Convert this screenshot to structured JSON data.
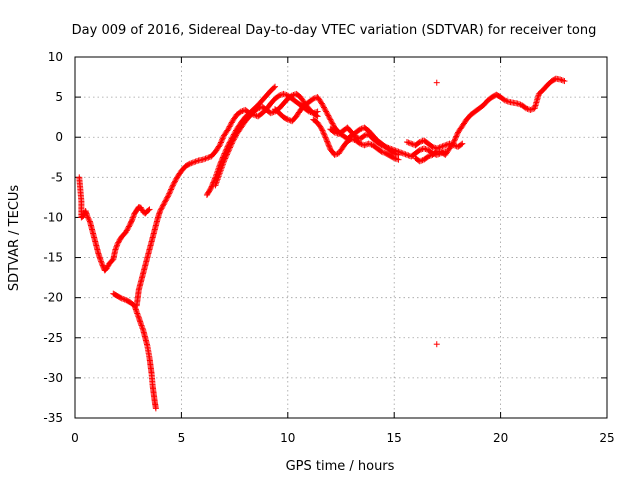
{
  "chart_data": {
    "type": "scatter",
    "title": "Day 009 of 2016, Sidereal Day-to-day VTEC variation (SDTVAR) for receiver tong",
    "xlabel": "GPS time / hours",
    "ylabel": "SDTVAR / TECUs",
    "xlim": [
      0,
      25
    ],
    "ylim": [
      -35,
      10
    ],
    "xticks": [
      0,
      5,
      10,
      15,
      20,
      25
    ],
    "yticks": [
      -35,
      -30,
      -25,
      -20,
      -15,
      -10,
      -5,
      0,
      5,
      10
    ],
    "grid": true,
    "marker": "plus",
    "colors": {
      "points": "#ff0000",
      "grid": "#a0a0a0",
      "frame": "#000000"
    },
    "series": [
      {
        "name": "",
        "segments": [
          [
            [
              0.2,
              -5
            ],
            [
              0.25,
              -6.5
            ],
            [
              0.3,
              -8
            ],
            [
              0.3,
              -10
            ],
            [
              0.4,
              -9.8
            ],
            [
              0.5,
              -9.2
            ],
            [
              0.6,
              -10
            ],
            [
              0.7,
              -10.5
            ],
            [
              0.8,
              -11.5
            ],
            [
              0.9,
              -12.5
            ],
            [
              1.0,
              -13.5
            ],
            [
              1.1,
              -14.5
            ],
            [
              1.2,
              -15.3
            ],
            [
              1.3,
              -16
            ],
            [
              1.4,
              -16.6
            ],
            [
              1.5,
              -16.3
            ],
            [
              1.6,
              -15.8
            ],
            [
              1.8,
              -15.2
            ],
            [
              1.9,
              -14
            ],
            [
              2.0,
              -13.3
            ],
            [
              2.1,
              -12.8
            ],
            [
              2.2,
              -12.4
            ],
            [
              2.4,
              -11.8
            ],
            [
              2.5,
              -11.3
            ],
            [
              2.6,
              -10.8
            ],
            [
              2.7,
              -10.2
            ],
            [
              2.8,
              -9.5
            ],
            [
              2.9,
              -9.1
            ],
            [
              3.0,
              -8.7
            ],
            [
              3.1,
              -8.8
            ],
            [
              3.2,
              -9.3
            ],
            [
              3.3,
              -9.5
            ],
            [
              3.4,
              -9.2
            ],
            [
              3.5,
              -9.0
            ]
          ],
          [
            [
              1.8,
              -19.5
            ],
            [
              2.0,
              -19.8
            ],
            [
              2.2,
              -20.1
            ],
            [
              2.4,
              -20.3
            ],
            [
              2.6,
              -20.6
            ],
            [
              2.8,
              -21
            ],
            [
              2.9,
              -21.8
            ],
            [
              3.0,
              -22.5
            ],
            [
              3.1,
              -23.3
            ],
            [
              3.2,
              -24
            ],
            [
              3.3,
              -25
            ],
            [
              3.4,
              -26
            ],
            [
              3.5,
              -27.5
            ],
            [
              3.55,
              -28.5
            ],
            [
              3.6,
              -29.5
            ],
            [
              3.65,
              -31
            ],
            [
              3.7,
              -32
            ],
            [
              3.75,
              -33
            ],
            [
              3.8,
              -33.8
            ]
          ],
          [
            [
              2.9,
              -21
            ],
            [
              2.95,
              -20
            ],
            [
              3.0,
              -19
            ],
            [
              3.1,
              -18
            ],
            [
              3.2,
              -17
            ],
            [
              3.3,
              -16
            ],
            [
              3.4,
              -15
            ],
            [
              3.5,
              -14
            ],
            [
              3.6,
              -13
            ],
            [
              3.7,
              -12
            ],
            [
              3.8,
              -11
            ],
            [
              3.9,
              -10
            ],
            [
              4.0,
              -9.2
            ],
            [
              4.2,
              -8.2
            ],
            [
              4.4,
              -7.2
            ],
            [
              4.6,
              -6
            ],
            [
              4.8,
              -5
            ],
            [
              5.0,
              -4.2
            ],
            [
              5.2,
              -3.6
            ],
            [
              5.4,
              -3.3
            ],
            [
              5.6,
              -3.1
            ],
            [
              5.8,
              -2.9
            ],
            [
              6.0,
              -2.8
            ],
            [
              6.2,
              -2.6
            ],
            [
              6.4,
              -2.4
            ],
            [
              6.6,
              -1.8
            ],
            [
              6.8,
              -1.0
            ],
            [
              7.0,
              0.2
            ],
            [
              7.2,
              1.0
            ],
            [
              7.4,
              2.0
            ],
            [
              7.6,
              2.8
            ],
            [
              7.8,
              3.2
            ],
            [
              8.0,
              3.4
            ],
            [
              8.2,
              3.0
            ],
            [
              8.4,
              2.8
            ],
            [
              8.6,
              2.6
            ],
            [
              8.8,
              3.0
            ],
            [
              9.0,
              3.5
            ],
            [
              9.2,
              4.2
            ],
            [
              9.4,
              4.8
            ],
            [
              9.6,
              5.2
            ],
            [
              9.8,
              5.4
            ],
            [
              10.0,
              5.2
            ],
            [
              10.2,
              4.8
            ],
            [
              10.4,
              4.4
            ],
            [
              10.6,
              4.0
            ],
            [
              10.8,
              3.6
            ],
            [
              11.0,
              3.2
            ],
            [
              11.2,
              3.0
            ],
            [
              11.4,
              3.2
            ]
          ],
          [
            [
              6.2,
              -7.2
            ],
            [
              6.4,
              -6.3
            ],
            [
              6.6,
              -5.0
            ],
            [
              6.8,
              -3.5
            ],
            [
              7.0,
              -2.2
            ],
            [
              7.2,
              -1.0
            ],
            [
              7.4,
              0
            ],
            [
              7.6,
              1.0
            ],
            [
              7.8,
              1.8
            ],
            [
              8.0,
              2.5
            ],
            [
              8.2,
              3.0
            ],
            [
              8.4,
              3.5
            ],
            [
              8.6,
              4.0
            ],
            [
              8.8,
              4.6
            ],
            [
              9.0,
              5.2
            ],
            [
              9.2,
              5.8
            ],
            [
              9.4,
              6.3
            ]
          ],
          [
            [
              6.6,
              -6.0
            ],
            [
              6.8,
              -4.5
            ],
            [
              7.0,
              -3.0
            ],
            [
              7.2,
              -1.8
            ],
            [
              7.4,
              -0.6
            ],
            [
              7.6,
              0.4
            ],
            [
              7.8,
              1.2
            ],
            [
              8.0,
              2.0
            ],
            [
              8.2,
              2.6
            ],
            [
              8.4,
              3.2
            ],
            [
              8.6,
              3.6
            ],
            [
              8.8,
              3.8
            ],
            [
              9.0,
              3.4
            ],
            [
              9.2,
              3.0
            ],
            [
              9.4,
              3.2
            ],
            [
              9.6,
              3.6
            ],
            [
              9.8,
              4.2
            ],
            [
              10.0,
              4.8
            ],
            [
              10.2,
              5.2
            ],
            [
              10.4,
              5.4
            ],
            [
              10.6,
              5.0
            ],
            [
              10.8,
              4.2
            ],
            [
              11.0,
              3.5
            ],
            [
              11.2,
              3.0
            ],
            [
              11.4,
              2.6
            ]
          ],
          [
            [
              9.4,
              3.5
            ],
            [
              9.6,
              3.0
            ],
            [
              9.8,
              2.5
            ],
            [
              10.0,
              2.2
            ],
            [
              10.2,
              2.0
            ],
            [
              10.4,
              2.6
            ],
            [
              10.6,
              3.4
            ],
            [
              10.8,
              4.0
            ],
            [
              11.0,
              4.4
            ],
            [
              11.2,
              4.8
            ],
            [
              11.4,
              5.0
            ],
            [
              11.6,
              4.2
            ],
            [
              11.8,
              3.2
            ],
            [
              12.0,
              2.2
            ],
            [
              12.2,
              1.2
            ],
            [
              12.4,
              0.6
            ],
            [
              12.6,
              0.2
            ],
            [
              12.8,
              -0.2
            ],
            [
              13.0,
              0.2
            ],
            [
              13.2,
              0.6
            ],
            [
              13.4,
              1.0
            ],
            [
              13.6,
              1.2
            ],
            [
              13.8,
              0.8
            ],
            [
              14.0,
              0.2
            ],
            [
              14.2,
              -0.4
            ],
            [
              14.4,
              -0.8
            ],
            [
              14.6,
              -1.2
            ],
            [
              14.8,
              -1.6
            ],
            [
              15.0,
              -2.0
            ],
            [
              15.2,
              -2.2
            ]
          ],
          [
            [
              11.2,
              2.2
            ],
            [
              11.4,
              1.8
            ],
            [
              11.6,
              1.0
            ],
            [
              11.8,
              -0.2
            ],
            [
              12.0,
              -1.5
            ],
            [
              12.2,
              -2.2
            ],
            [
              12.4,
              -2.0
            ],
            [
              12.6,
              -1.2
            ],
            [
              12.8,
              -0.5
            ],
            [
              13.0,
              -0.2
            ],
            [
              13.2,
              -0.4
            ],
            [
              13.4,
              -0.8
            ],
            [
              13.6,
              -1.0
            ],
            [
              13.8,
              -0.8
            ],
            [
              14.0,
              -1.0
            ],
            [
              14.2,
              -1.4
            ],
            [
              14.4,
              -1.8
            ],
            [
              14.6,
              -2.0
            ],
            [
              14.8,
              -2.3
            ],
            [
              15.0,
              -2.6
            ],
            [
              15.2,
              -2.8
            ]
          ],
          [
            [
              12.0,
              1.0
            ],
            [
              12.2,
              0.6
            ],
            [
              12.4,
              0.4
            ],
            [
              12.6,
              0.8
            ],
            [
              12.8,
              1.2
            ],
            [
              13.0,
              0.6
            ],
            [
              13.2,
              0
            ],
            [
              13.4,
              -0.2
            ],
            [
              13.6,
              0.2
            ],
            [
              13.8,
              0.4
            ],
            [
              14.0,
              -0.2
            ],
            [
              14.2,
              -0.6
            ],
            [
              14.4,
              -1.0
            ],
            [
              14.6,
              -1.2
            ],
            [
              14.8,
              -1.4
            ],
            [
              15.0,
              -1.6
            ],
            [
              15.2,
              -1.8
            ],
            [
              15.4,
              -2.0
            ],
            [
              15.6,
              -2.2
            ],
            [
              15.8,
              -2.4
            ],
            [
              16.0,
              -2.0
            ],
            [
              16.2,
              -1.6
            ],
            [
              16.4,
              -1.4
            ],
            [
              16.6,
              -1.6
            ],
            [
              16.8,
              -2.0
            ],
            [
              17.0,
              -2.2
            ],
            [
              17.2,
              -2.0
            ],
            [
              17.4,
              -1.8
            ]
          ],
          [
            [
              15.6,
              -0.6
            ],
            [
              15.8,
              -0.8
            ],
            [
              16.0,
              -1.0
            ],
            [
              16.2,
              -0.6
            ],
            [
              16.4,
              -0.4
            ],
            [
              16.6,
              -0.8
            ],
            [
              16.8,
              -1.2
            ],
            [
              17.0,
              -1.4
            ],
            [
              17.2,
              -1.2
            ],
            [
              17.4,
              -1.0
            ],
            [
              17.6,
              -0.8
            ],
            [
              17.8,
              -1.0
            ],
            [
              18.0,
              -1.2
            ],
            [
              18.2,
              -0.8
            ]
          ],
          [
            [
              16.0,
              -2.6
            ],
            [
              16.2,
              -3.0
            ],
            [
              16.4,
              -2.8
            ],
            [
              16.6,
              -2.4
            ],
            [
              16.8,
              -2.2
            ],
            [
              17.0,
              -1.8
            ],
            [
              17.2,
              -1.8
            ],
            [
              17.4,
              -2.2
            ],
            [
              17.6,
              -1.4
            ],
            [
              17.8,
              -0.6
            ],
            [
              18.0,
              0.6
            ],
            [
              18.2,
              1.4
            ],
            [
              18.4,
              2.2
            ],
            [
              18.6,
              2.8
            ],
            [
              18.8,
              3.2
            ],
            [
              19.0,
              3.6
            ],
            [
              19.2,
              4.0
            ],
            [
              19.4,
              4.6
            ],
            [
              19.6,
              5.0
            ],
            [
              19.8,
              5.3
            ],
            [
              20.0,
              5.0
            ],
            [
              20.2,
              4.6
            ],
            [
              20.4,
              4.4
            ],
            [
              20.6,
              4.3
            ],
            [
              20.8,
              4.2
            ],
            [
              21.0,
              4.0
            ],
            [
              21.2,
              3.6
            ],
            [
              21.4,
              3.4
            ],
            [
              21.6,
              3.6
            ],
            [
              21.8,
              5.4
            ],
            [
              22.0,
              5.9
            ],
            [
              22.2,
              6.5
            ],
            [
              22.4,
              7.0
            ],
            [
              22.6,
              7.3
            ],
            [
              22.8,
              7.2
            ],
            [
              23.0,
              7.0
            ]
          ],
          [
            [
              17.0,
              6.8
            ]
          ],
          [
            [
              17.0,
              -25.8
            ]
          ]
        ]
      }
    ]
  }
}
